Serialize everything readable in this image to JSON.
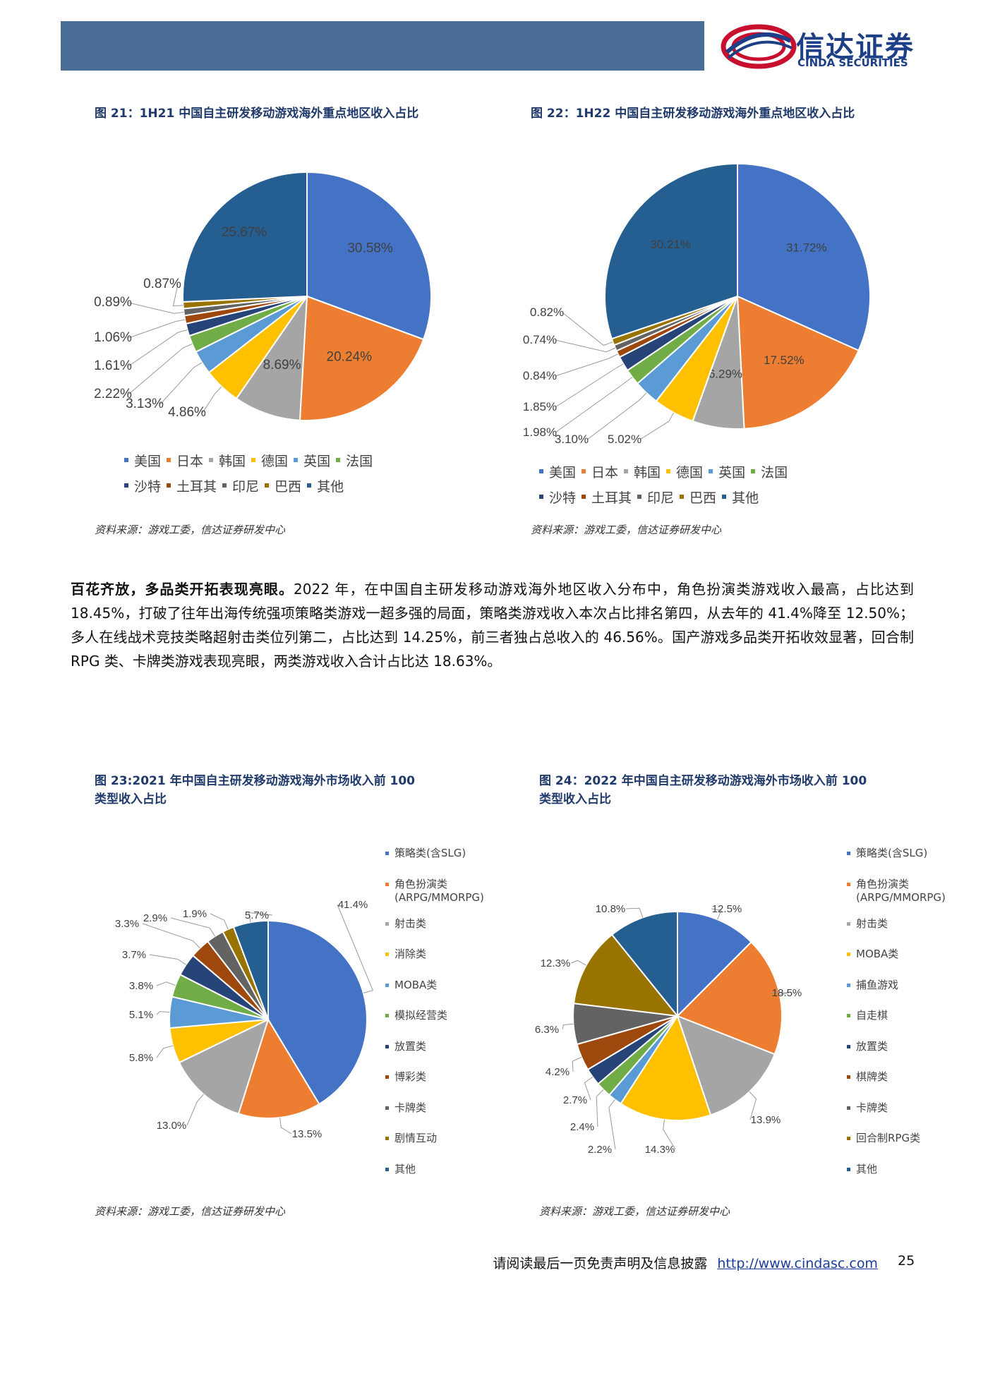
{
  "header": {
    "logo_cn": "信达证券",
    "logo_en": "CINDA SECURITIES"
  },
  "fig21": {
    "title": "图 21：1H21 中国自主研发移动游戏海外重点地区收入占比",
    "source": "资料来源：游戏工委，信达证券研发中心"
  },
  "fig22": {
    "title": "图 22：1H22 中国自主研发移动游戏海外重点地区收入占比",
    "source": "资料来源：游戏工委，信达证券研发中心"
  },
  "fig23": {
    "title_line1": "图 23:2021 年中国自主研发移动游戏海外市场收入前 100",
    "title_line2": "类型收入占比",
    "source": "资料来源：游戏工委，信达证券研发中心"
  },
  "fig24": {
    "title_line1": "图 24：2022 年中国自主研发移动游戏海外市场收入前 100",
    "title_line2": "类型收入占比",
    "source": "资料来源：游戏工委，信达证券研发中心"
  },
  "body": {
    "lead": "百花齐放，多品类开拓表现亮眼。",
    "text": "2022 年，在中国自主研发移动游戏海外地区收入分布中，角色扮演类游戏收入最高，占比达到 18.45%，打破了往年出海传统强项策略类游戏一超多强的局面，策略类游戏收入本次占比排名第四，从去年的 41.4%降至 12.50%；多人在线战术竞技类略超射击类位列第二，占比达到 14.25%，前三者独占总收入的 46.56%。国产游戏多品类开拓收效显著，回合制 RPG 类、卡牌类游戏表现亮眼，两类游戏收入合计占比达 18.63%。"
  },
  "footer": {
    "note": "请阅读最后一页免责声明及信息披露",
    "link": "http://www.cindasc.com",
    "page": "25"
  },
  "chart_data": [
    {
      "type": "pie",
      "id": "fig21",
      "categories": [
        "美国",
        "日本",
        "韩国",
        "德国",
        "英国",
        "法国",
        "沙特",
        "土耳其",
        "印尼",
        "巴西",
        "其他"
      ],
      "values": [
        30.58,
        20.24,
        8.69,
        4.86,
        3.13,
        2.22,
        1.61,
        1.06,
        0.89,
        0.87,
        25.67
      ],
      "labels": [
        "30.58%",
        "20.24%",
        "8.69%",
        "4.86%",
        "3.13%",
        "2.22%",
        "1.61%",
        "1.06%",
        "0.89%",
        "0.87%",
        "25.67%"
      ],
      "colors": [
        "#4472c4",
        "#ed7d31",
        "#a5a5a5",
        "#ffc000",
        "#5b9bd5",
        "#70ad47",
        "#264478",
        "#9e480e",
        "#636363",
        "#997300",
        "#255e91"
      ],
      "legend": "bottom"
    },
    {
      "type": "pie",
      "id": "fig22",
      "categories": [
        "美国",
        "日本",
        "韩国",
        "德国",
        "英国",
        "法国",
        "沙特",
        "土耳其",
        "印尼",
        "巴西",
        "其他"
      ],
      "values": [
        31.72,
        17.52,
        6.29,
        5.02,
        3.1,
        1.98,
        1.85,
        0.84,
        0.74,
        0.82,
        30.21
      ],
      "labels": [
        "31.72%",
        "17.52%",
        "6.29%",
        "5.02%",
        "3.10%",
        "1.98%",
        "1.85%",
        "0.84%",
        "0.74%",
        "0.82%",
        "30.21%"
      ],
      "colors": [
        "#4472c4",
        "#ed7d31",
        "#a5a5a5",
        "#ffc000",
        "#5b9bd5",
        "#70ad47",
        "#264478",
        "#9e480e",
        "#636363",
        "#997300",
        "#255e91"
      ],
      "legend": "bottom"
    },
    {
      "type": "pie",
      "id": "fig23",
      "categories": [
        "策略类(含SLG)",
        "角色扮演类(ARPG/MMORPG)",
        "射击类",
        "消除类",
        "MOBA类",
        "模拟经营类",
        "放置类",
        "博彩类",
        "卡牌类",
        "剧情互动",
        "其他"
      ],
      "values": [
        41.4,
        13.5,
        13.0,
        5.8,
        5.1,
        3.8,
        3.7,
        3.3,
        2.9,
        1.9,
        5.7
      ],
      "labels": [
        "41.4%",
        "13.5%",
        "13.0%",
        "5.8%",
        "5.1%",
        "3.8%",
        "3.7%",
        "3.3%",
        "2.9%",
        "1.9%",
        "5.7%"
      ],
      "colors": [
        "#4472c4",
        "#ed7d31",
        "#a5a5a5",
        "#ffc000",
        "#5b9bd5",
        "#70ad47",
        "#264478",
        "#9e480e",
        "#636363",
        "#997300",
        "#255e91"
      ],
      "legend": "right"
    },
    {
      "type": "pie",
      "id": "fig24",
      "categories": [
        "策略类(含SLG)",
        "角色扮演类(ARPG/MMORPG)",
        "射击类",
        "MOBA类",
        "捕鱼游戏",
        "自走棋",
        "放置类",
        "棋牌类",
        "卡牌类",
        "回合制RPG类",
        "其他"
      ],
      "values": [
        12.5,
        18.5,
        13.9,
        14.3,
        2.2,
        2.4,
        2.7,
        4.2,
        6.3,
        12.3,
        10.8
      ],
      "labels": [
        "12.5%",
        "18.5%",
        "13.9%",
        "14.3%",
        "2.2%",
        "2.4%",
        "2.7%",
        "4.2%",
        "6.3%",
        "12.3%",
        "10.8%"
      ],
      "colors": [
        "#4472c4",
        "#ed7d31",
        "#a5a5a5",
        "#ffc000",
        "#5b9bd5",
        "#70ad47",
        "#264478",
        "#9e480e",
        "#636363",
        "#997300",
        "#255e91"
      ],
      "legend": "right"
    }
  ]
}
